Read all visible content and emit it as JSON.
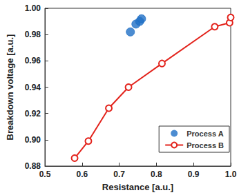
{
  "chart_data": {
    "type": "scatter",
    "x_label": "Resistance [a.u.]",
    "y_label": "Breakdown voltage [a.u.]",
    "xlim": [
      0.5,
      1.0
    ],
    "xticks": [
      0.5,
      0.6,
      0.7,
      0.8,
      0.9,
      {
        "value": 1,
        "label": "1.0"
      }
    ],
    "ylim": [
      0.88,
      1.0
    ],
    "yticks": [
      0.88,
      {
        "value": 0.9,
        "label": "0.90"
      },
      0.92,
      0.94,
      0.96,
      0.98,
      {
        "value": 1,
        "label": "1.00"
      }
    ],
    "grid": false,
    "legend": "lower right",
    "series": [
      {
        "name": "Process A",
        "type": "scatter",
        "color": "#1f6fc5",
        "marker": "circle",
        "line_style": "none",
        "x": [
          0.73,
          0.745,
          0.755,
          0.76
        ],
        "values": [
          0.982,
          0.988,
          0.99,
          0.992
        ]
      },
      {
        "name": "Process B",
        "type": "line",
        "color": "#e3231c",
        "marker": "open_circle",
        "line_style": "solid",
        "x": [
          0.58,
          0.617,
          0.672,
          0.725,
          0.815,
          0.957,
          0.997,
          1.0
        ],
        "values": [
          0.886,
          0.899,
          0.924,
          0.94,
          0.958,
          0.986,
          0.989,
          0.993
        ]
      }
    ]
  }
}
